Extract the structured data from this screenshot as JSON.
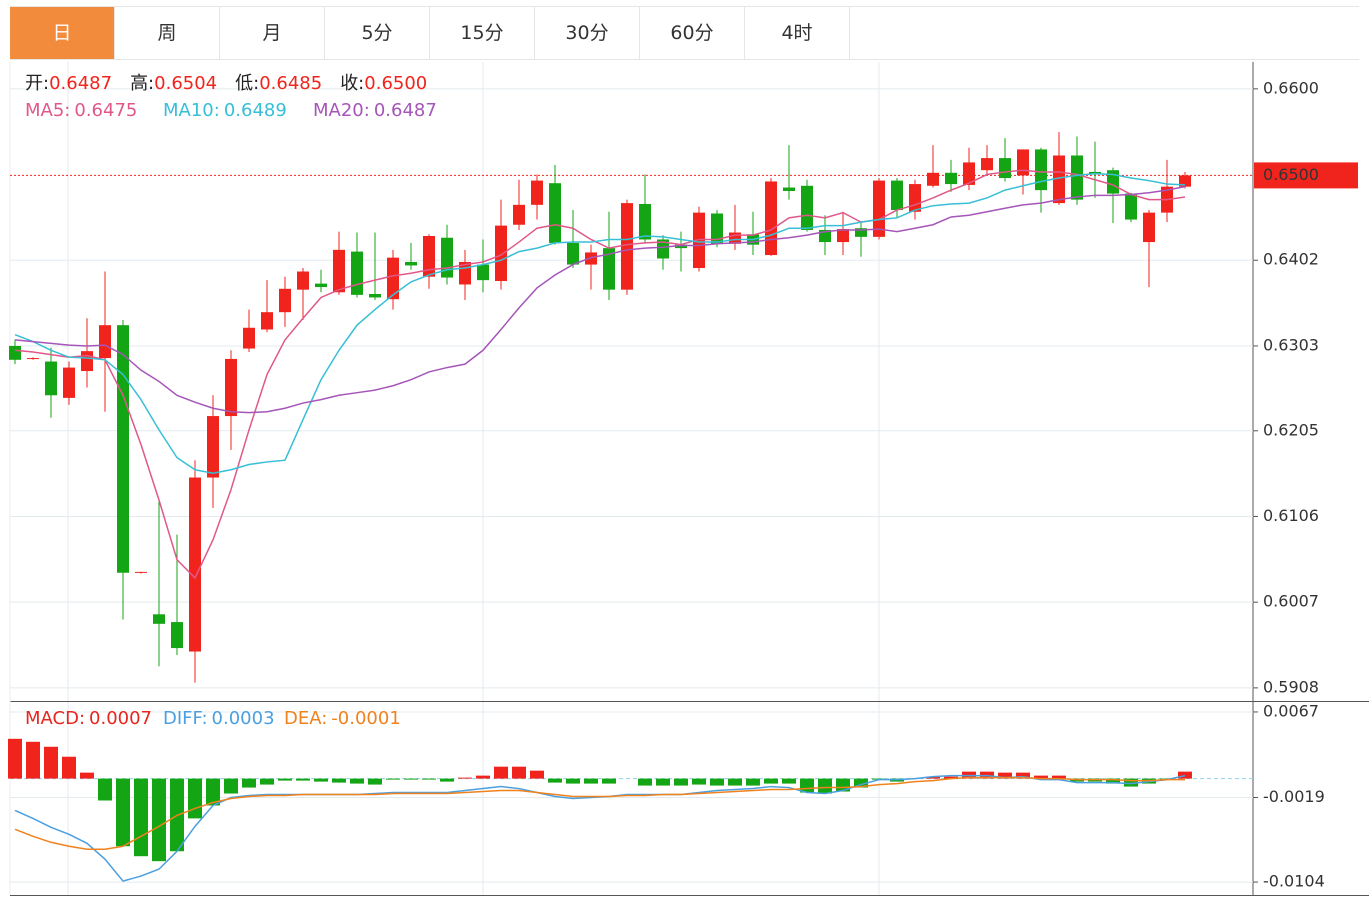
{
  "tabs": [
    "日",
    "周",
    "月",
    "5分",
    "15分",
    "30分",
    "60分",
    "4时"
  ],
  "active_tab": "日",
  "chart_data": [
    {
      "type": "candlestick",
      "up_color": "#f0241c",
      "down_color": "#14a514",
      "ylim": [
        0.5894,
        0.6631
      ],
      "yticks": [
        0.5908,
        0.6007,
        0.6106,
        0.6205,
        0.6303,
        0.6402,
        {
          "value": 0.66,
          "label": "0.6600"
        }
      ],
      "grid": true,
      "last_price": {
        "value": 0.65,
        "label": "0.6500"
      },
      "info": {
        "labels": [
          "开:",
          "高:",
          "低:",
          "收:"
        ],
        "values": [
          0.6487,
          0.6504,
          0.6485,
          0.65
        ],
        "value_labels": [
          "0.6487",
          "0.6504",
          "0.6485",
          "0.6500"
        ]
      },
      "open": [
        0.6303,
        0.6288,
        0.6285,
        0.6243,
        0.6274,
        0.6289,
        0.6327,
        0.6041,
        0.5993,
        0.5984,
        0.595,
        0.6151,
        0.6222,
        0.63,
        0.6322,
        0.6342,
        0.6368,
        0.6375,
        0.6365,
        0.6412,
        0.6363,
        0.6357,
        0.64,
        0.6383,
        0.6428,
        0.6374,
        0.6397,
        0.6378,
        0.6443,
        0.6466,
        0.6491,
        0.6422,
        0.6397,
        0.6416,
        0.6368,
        0.6467,
        0.6426,
        0.642,
        0.6393,
        0.6456,
        0.6421,
        0.6432,
        0.6408,
        0.6486,
        0.6488,
        0.6437,
        0.6423,
        0.6439,
        0.6429,
        0.6494,
        0.6458,
        0.6488,
        0.6503,
        0.6489,
        0.6506,
        0.652,
        0.65,
        0.653,
        0.6468,
        0.6523,
        0.6504,
        0.6506,
        0.6479,
        0.6423,
        0.6457,
        0.6487
      ],
      "high": [
        0.631,
        0.629,
        0.6301,
        0.6285,
        0.6335,
        0.6389,
        0.6333,
        0.6042,
        0.6125,
        0.6085,
        0.6171,
        0.6246,
        0.6298,
        0.6345,
        0.6379,
        0.6383,
        0.6393,
        0.6391,
        0.6435,
        0.6434,
        0.6434,
        0.6414,
        0.6422,
        0.6432,
        0.6443,
        0.6414,
        0.6426,
        0.6472,
        0.6495,
        0.6501,
        0.6512,
        0.646,
        0.642,
        0.6458,
        0.6472,
        0.6501,
        0.6431,
        0.6435,
        0.6464,
        0.646,
        0.6466,
        0.6458,
        0.6497,
        0.6535,
        0.6495,
        0.6454,
        0.6458,
        0.6446,
        0.6497,
        0.6497,
        0.6495,
        0.6535,
        0.6518,
        0.6532,
        0.6535,
        0.6543,
        0.653,
        0.6532,
        0.655,
        0.6545,
        0.6539,
        0.6509,
        0.648,
        0.646,
        0.6518,
        0.6504
      ],
      "low": [
        0.6282,
        0.6287,
        0.622,
        0.6235,
        0.6255,
        0.6227,
        0.5987,
        0.604,
        0.5933,
        0.5946,
        0.5914,
        0.6116,
        0.6183,
        0.6296,
        0.6319,
        0.6325,
        0.6333,
        0.6365,
        0.6362,
        0.6359,
        0.6356,
        0.6345,
        0.6391,
        0.6369,
        0.6374,
        0.6356,
        0.6365,
        0.6368,
        0.6437,
        0.6449,
        0.642,
        0.6393,
        0.6368,
        0.6356,
        0.6362,
        0.6422,
        0.6391,
        0.6389,
        0.6389,
        0.6417,
        0.6414,
        0.6408,
        0.6407,
        0.6472,
        0.6435,
        0.6408,
        0.6408,
        0.6406,
        0.6426,
        0.6451,
        0.6449,
        0.6486,
        0.6481,
        0.6483,
        0.6501,
        0.6493,
        0.6478,
        0.6457,
        0.6466,
        0.6466,
        0.6474,
        0.6445,
        0.6446,
        0.6371,
        0.6446,
        0.6485
      ],
      "close": [
        0.6287,
        0.6289,
        0.6246,
        0.6278,
        0.6297,
        0.6327,
        0.6041,
        0.6042,
        0.5982,
        0.5954,
        0.6151,
        0.6222,
        0.6288,
        0.6324,
        0.6342,
        0.6369,
        0.6389,
        0.6371,
        0.6414,
        0.6362,
        0.6359,
        0.6405,
        0.6396,
        0.643,
        0.6382,
        0.64,
        0.6379,
        0.6442,
        0.6466,
        0.6494,
        0.6422,
        0.6397,
        0.6411,
        0.6368,
        0.6468,
        0.6426,
        0.6404,
        0.6416,
        0.6457,
        0.6421,
        0.6434,
        0.642,
        0.6493,
        0.6482,
        0.6437,
        0.6423,
        0.6438,
        0.6429,
        0.6494,
        0.646,
        0.649,
        0.6503,
        0.649,
        0.6515,
        0.652,
        0.6497,
        0.653,
        0.6483,
        0.6523,
        0.6472,
        0.6501,
        0.6479,
        0.6449,
        0.6457,
        0.6487,
        0.65
      ],
      "series": [
        {
          "name": "MA5:",
          "color": "#e0588a",
          "values": [
            0.6298,
            0.6296,
            0.6293,
            0.629,
            0.6292,
            0.6287,
            0.6246,
            0.6189,
            0.6125,
            0.6056,
            0.6035,
            0.6079,
            0.6137,
            0.6206,
            0.627,
            0.631,
            0.6335,
            0.6359,
            0.6368,
            0.6374,
            0.6379,
            0.6384,
            0.6387,
            0.6391,
            0.6393,
            0.6397,
            0.64,
            0.6408,
            0.6423,
            0.6439,
            0.6443,
            0.6439,
            0.6426,
            0.6416,
            0.642,
            0.6422,
            0.6423,
            0.642,
            0.6426,
            0.6426,
            0.6431,
            0.6431,
            0.6437,
            0.6451,
            0.6454,
            0.6451,
            0.6457,
            0.6446,
            0.6449,
            0.646,
            0.6466,
            0.6474,
            0.6483,
            0.6491,
            0.6501,
            0.6504,
            0.6506,
            0.6504,
            0.6504,
            0.6501,
            0.6495,
            0.6489,
            0.6478,
            0.6472,
            0.6472,
            0.6475
          ]
        },
        {
          "name": "MA10:",
          "color": "#36bfd6",
          "values": [
            0.6316,
            0.6308,
            0.6298,
            0.629,
            0.6289,
            0.6287,
            0.627,
            0.6241,
            0.6206,
            0.6174,
            0.616,
            0.6156,
            0.616,
            0.6166,
            0.6169,
            0.6171,
            0.6218,
            0.6264,
            0.6298,
            0.6327,
            0.6345,
            0.6362,
            0.6377,
            0.6385,
            0.6391,
            0.6393,
            0.6397,
            0.6402,
            0.6412,
            0.6416,
            0.6422,
            0.6423,
            0.6423,
            0.6426,
            0.6426,
            0.643,
            0.6429,
            0.6426,
            0.6423,
            0.6423,
            0.6426,
            0.6426,
            0.6431,
            0.6439,
            0.6439,
            0.6442,
            0.6442,
            0.6446,
            0.6449,
            0.6451,
            0.646,
            0.6465,
            0.6467,
            0.6468,
            0.6474,
            0.6483,
            0.6488,
            0.6493,
            0.6497,
            0.65,
            0.6502,
            0.6501,
            0.6497,
            0.6494,
            0.649,
            0.6489
          ]
        },
        {
          "name": "MA20:",
          "color": "#a655b9",
          "values": [
            0.631,
            0.6308,
            0.6306,
            0.6304,
            0.6303,
            0.6304,
            0.6293,
            0.6275,
            0.6262,
            0.6246,
            0.6238,
            0.6231,
            0.6227,
            0.6226,
            0.6227,
            0.6231,
            0.6237,
            0.6241,
            0.6246,
            0.6249,
            0.6252,
            0.6257,
            0.6264,
            0.6273,
            0.6278,
            0.6282,
            0.6298,
            0.6322,
            0.6347,
            0.637,
            0.6385,
            0.6397,
            0.6405,
            0.6409,
            0.6414,
            0.6416,
            0.6417,
            0.6419,
            0.6419,
            0.6421,
            0.6422,
            0.6423,
            0.6426,
            0.6428,
            0.6431,
            0.6435,
            0.6437,
            0.6437,
            0.6438,
            0.6435,
            0.6439,
            0.6443,
            0.6452,
            0.6454,
            0.6458,
            0.6462,
            0.6466,
            0.6468,
            0.6472,
            0.6475,
            0.6477,
            0.6477,
            0.6478,
            0.648,
            0.6483,
            0.6487
          ]
        }
      ]
    },
    {
      "type": "macd",
      "up_color": "#f0241c",
      "down_color": "#14a514",
      "ylim": [
        -0.0117,
        0.0076
      ],
      "yticks": [
        -0.0104,
        -0.0019,
        0.0067
      ],
      "grid": true,
      "series": [
        {
          "name": "MACD:",
          "color": "#e8251e",
          "kind": "bar",
          "values": [
            0.004,
            0.0037,
            0.0032,
            0.0022,
            0.0006,
            -0.0022,
            -0.0068,
            -0.0078,
            -0.0083,
            -0.0073,
            -0.004,
            -0.0027,
            -0.0015,
            -0.0009,
            -0.0006,
            -0.0002,
            -0.0002,
            -0.0003,
            -0.0004,
            -0.0005,
            -0.0006,
            -0.0001,
            -0.0001,
            -0.0001,
            -0.0003,
            0.0001,
            0.0003,
            0.0012,
            0.0012,
            0.0008,
            -0.0004,
            -0.0005,
            -0.0005,
            -0.0005,
            0,
            -0.0007,
            -0.0007,
            -0.0007,
            -0.0006,
            -0.0007,
            -0.0007,
            -0.0007,
            -0.0005,
            -0.0005,
            -0.0014,
            -0.0015,
            -0.0013,
            -0.0009,
            -0.0001,
            -0.0003,
            0,
            0.0002,
            0.0002,
            0.0007,
            0.0007,
            0.0006,
            0.0006,
            0.0003,
            0.0003,
            -0.0003,
            -0.0003,
            -0.0005,
            -0.0008,
            -0.0005,
            -0.0001,
            0.0007
          ]
        },
        {
          "name": "DIFF:",
          "color": "#4b9fe0",
          "kind": "line",
          "values": [
            -0.0032,
            -0.004,
            -0.0049,
            -0.0056,
            -0.0065,
            -0.0081,
            -0.0103,
            -0.0098,
            -0.0091,
            -0.0073,
            -0.0048,
            -0.0027,
            -0.0019,
            -0.0017,
            -0.0016,
            -0.0016,
            -0.0016,
            -0.0016,
            -0.0016,
            -0.0016,
            -0.0015,
            -0.0014,
            -0.0014,
            -0.0014,
            -0.0014,
            -0.0012,
            -0.001,
            -0.0008,
            -0.001,
            -0.0014,
            -0.0018,
            -0.002,
            -0.0019,
            -0.0018,
            -0.0016,
            -0.0016,
            -0.0016,
            -0.0016,
            -0.0014,
            -0.0012,
            -0.0011,
            -0.001,
            -0.0008,
            -0.0009,
            -0.0014,
            -0.0015,
            -0.0012,
            -0.0006,
            -0.0001,
            -0.0001,
            0,
            0.0002,
            0.0003,
            0.0003,
            0.0003,
            0.0001,
            0.0002,
            -0.0001,
            -0.0001,
            -0.0004,
            -0.0004,
            -0.0004,
            -0.0005,
            -0.0003,
            -0.0001,
            0.0003
          ]
        },
        {
          "name": "DEA:",
          "color": "#f0821e",
          "kind": "line",
          "values": [
            -0.0051,
            -0.0058,
            -0.0064,
            -0.0068,
            -0.0071,
            -0.0071,
            -0.0068,
            -0.0058,
            -0.0048,
            -0.0037,
            -0.003,
            -0.0024,
            -0.002,
            -0.0018,
            -0.0017,
            -0.0017,
            -0.0016,
            -0.0016,
            -0.0016,
            -0.0016,
            -0.0016,
            -0.0015,
            -0.0015,
            -0.0015,
            -0.0015,
            -0.0014,
            -0.0013,
            -0.0012,
            -0.0012,
            -0.0014,
            -0.0016,
            -0.0018,
            -0.0018,
            -0.0018,
            -0.0017,
            -0.0017,
            -0.0016,
            -0.0016,
            -0.0015,
            -0.0014,
            -0.0013,
            -0.0012,
            -0.0011,
            -0.0011,
            -0.001,
            -0.0009,
            -0.0009,
            -0.0008,
            -0.0006,
            -0.0005,
            -0.0003,
            -0.0002,
            0,
            0.0001,
            0.0001,
            0.0001,
            0.0001,
            0,
            0,
            -0.0001,
            -0.0001,
            -0.0001,
            -0.0002,
            -0.0002,
            -0.0001,
            -0.0001
          ]
        }
      ]
    }
  ]
}
